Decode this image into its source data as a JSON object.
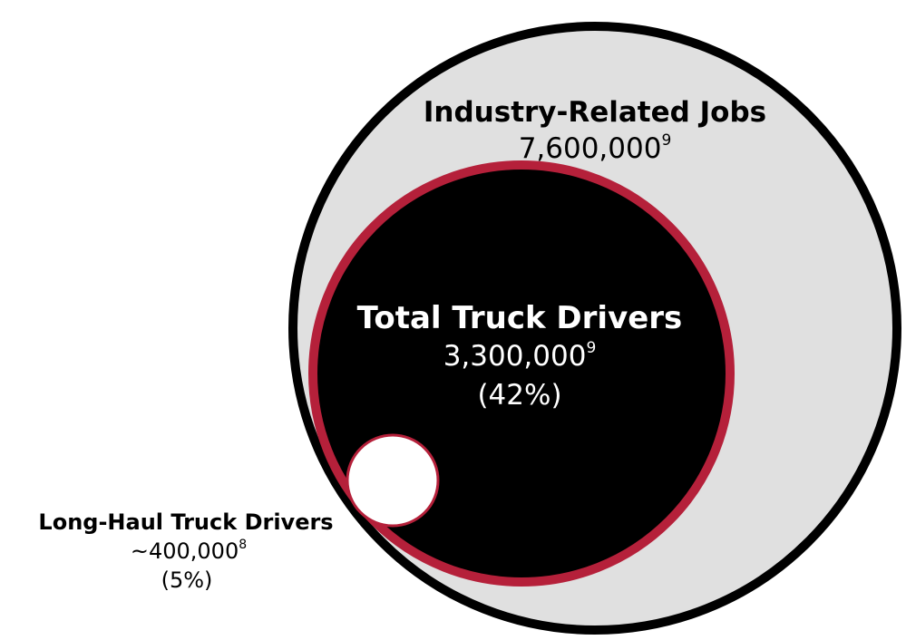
{
  "nodes": [
    {
      "label": "Industry-Related Jobs",
      "value": "7,600,000",
      "footnote": "9"
    },
    {
      "label": "Total Truck Drivers",
      "value": "3,300,000",
      "footnote": "9",
      "share": "(42%)"
    },
    {
      "label": "Long-Haul Truck Drivers",
      "value": "~400,000",
      "footnote": "8",
      "share": "(5%)"
    }
  ]
}
